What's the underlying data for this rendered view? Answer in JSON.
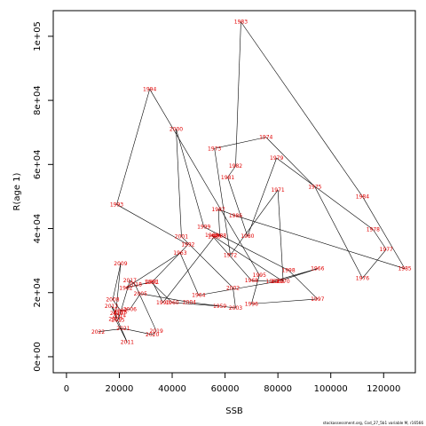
{
  "chart_data": {
    "type": "scatter",
    "title": "",
    "xlabel": "SSB",
    "ylabel": "R(age 1)",
    "xlim": [
      -5000,
      132000
    ],
    "ylim": [
      -5000,
      108000
    ],
    "x_ticks": [
      0,
      20000,
      40000,
      60000,
      80000,
      100000,
      120000
    ],
    "x_tick_labels": [
      "0",
      "20000",
      "40000",
      "60000",
      "80000",
      "100000",
      "120000"
    ],
    "y_ticks": [
      0,
      20000,
      40000,
      60000,
      80000,
      100000
    ],
    "y_tick_labels": [
      "0e+00",
      "2e+04",
      "4e+04",
      "6e+04",
      "8e+04",
      "1e+05"
    ],
    "connect_points_in_year_order": true,
    "point_label_color": "#e00000",
    "line_color": "#000000",
    "grid": false,
    "credit_text": "stockassessment.org,  Cod_27_5b1  variable  M,  r16566",
    "points": [
      {
        "year": "1959",
        "x": 58000,
        "y": 15800
      },
      {
        "year": "1960",
        "x": 40000,
        "y": 16900
      },
      {
        "year": "1961",
        "x": 32000,
        "y": 23300
      },
      {
        "year": "1962",
        "x": 22500,
        "y": 21500
      },
      {
        "year": "1963",
        "x": 43000,
        "y": 32400
      },
      {
        "year": "1964",
        "x": 50000,
        "y": 19200
      },
      {
        "year": "1965",
        "x": 80000,
        "y": 23500
      },
      {
        "year": "1966",
        "x": 95000,
        "y": 27500
      },
      {
        "year": "1967",
        "x": 78000,
        "y": 23500
      },
      {
        "year": "1968",
        "x": 70000,
        "y": 23800
      },
      {
        "year": "1969",
        "x": 55000,
        "y": 37900
      },
      {
        "year": "1970",
        "x": 82000,
        "y": 23500
      },
      {
        "year": "1971",
        "x": 80000,
        "y": 52000
      },
      {
        "year": "1972",
        "x": 62000,
        "y": 31700
      },
      {
        "year": "1973",
        "x": 56000,
        "y": 65000
      },
      {
        "year": "1974",
        "x": 75500,
        "y": 68500
      },
      {
        "year": "1975",
        "x": 94000,
        "y": 53000
      },
      {
        "year": "1976",
        "x": 112000,
        "y": 24500
      },
      {
        "year": "1977",
        "x": 121000,
        "y": 33500
      },
      {
        "year": "1978",
        "x": 116000,
        "y": 39700
      },
      {
        "year": "1979",
        "x": 79500,
        "y": 62000
      },
      {
        "year": "1980",
        "x": 68500,
        "y": 37600
      },
      {
        "year": "1981",
        "x": 61000,
        "y": 56000
      },
      {
        "year": "1982",
        "x": 64000,
        "y": 59500
      },
      {
        "year": "1983",
        "x": 66000,
        "y": 104500
      },
      {
        "year": "1984",
        "x": 112000,
        "y": 50000
      },
      {
        "year": "1985",
        "x": 128000,
        "y": 27500
      },
      {
        "year": "1986",
        "x": 64000,
        "y": 44000
      },
      {
        "year": "1987",
        "x": 57500,
        "y": 46000
      },
      {
        "year": "1988",
        "x": 58000,
        "y": 37800
      },
      {
        "year": "1989",
        "x": 56000,
        "y": 37500
      },
      {
        "year": "1990",
        "x": 36500,
        "y": 16900
      },
      {
        "year": "1991",
        "x": 32500,
        "y": 23400
      },
      {
        "year": "1992",
        "x": 46000,
        "y": 35000
      },
      {
        "year": "1993",
        "x": 19000,
        "y": 47500
      },
      {
        "year": "1994",
        "x": 31500,
        "y": 83500
      },
      {
        "year": "1995",
        "x": 73000,
        "y": 25500
      },
      {
        "year": "1996",
        "x": 70000,
        "y": 16500
      },
      {
        "year": "1997",
        "x": 95000,
        "y": 18000
      },
      {
        "year": "1998",
        "x": 84000,
        "y": 27000
      },
      {
        "year": "1999",
        "x": 52000,
        "y": 40500
      },
      {
        "year": "2000",
        "x": 41500,
        "y": 71000
      },
      {
        "year": "2001",
        "x": 43500,
        "y": 37500
      },
      {
        "year": "2002",
        "x": 63000,
        "y": 21500
      },
      {
        "year": "2003",
        "x": 64000,
        "y": 15200
      },
      {
        "year": "2004",
        "x": 46500,
        "y": 17000
      },
      {
        "year": "2005",
        "x": 28000,
        "y": 19700
      },
      {
        "year": "2006",
        "x": 24000,
        "y": 14800
      },
      {
        "year": "2007",
        "x": 20500,
        "y": 14400
      },
      {
        "year": "2008",
        "x": 17500,
        "y": 17800
      },
      {
        "year": "2009",
        "x": 20500,
        "y": 29000
      },
      {
        "year": "2010",
        "x": 18500,
        "y": 11800
      },
      {
        "year": "2011",
        "x": 23000,
        "y": 4500
      },
      {
        "year": "2012",
        "x": 17000,
        "y": 15800
      },
      {
        "year": "2013",
        "x": 19000,
        "y": 13500
      },
      {
        "year": "2014",
        "x": 20000,
        "y": 12800
      },
      {
        "year": "2015",
        "x": 19500,
        "y": 11500
      },
      {
        "year": "2016",
        "x": 20500,
        "y": 14000
      },
      {
        "year": "2017",
        "x": 24000,
        "y": 23800
      },
      {
        "year": "2018",
        "x": 26000,
        "y": 22500
      },
      {
        "year": "2019",
        "x": 34000,
        "y": 8000
      },
      {
        "year": "2020",
        "x": 32500,
        "y": 6900
      },
      {
        "year": "2021",
        "x": 21500,
        "y": 8800
      },
      {
        "year": "2022",
        "x": 12000,
        "y": 7800
      }
    ]
  }
}
